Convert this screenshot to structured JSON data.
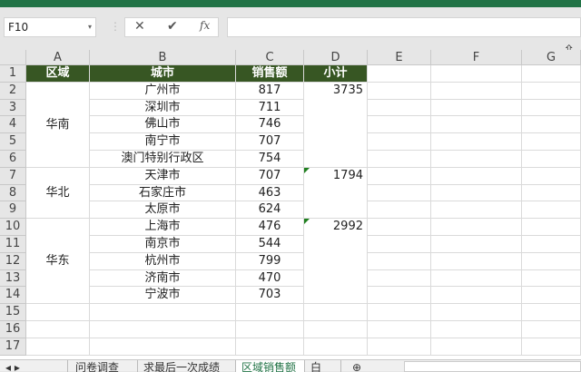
{
  "name_box": "F10",
  "formula_buttons": {
    "cancel": "✕",
    "enter": "✔",
    "fx": "fx"
  },
  "columns": [
    "A",
    "B",
    "C",
    "D",
    "E",
    "F",
    "G"
  ],
  "rows": [
    "1",
    "2",
    "3",
    "4",
    "5",
    "6",
    "7",
    "8",
    "9",
    "10",
    "11",
    "12",
    "13",
    "14",
    "15",
    "16",
    "17"
  ],
  "header": [
    "区域",
    "城市",
    "销售额",
    "小计"
  ],
  "regions": [
    {
      "name": "华南",
      "start": 2,
      "end": 6,
      "subtotal": "3735"
    },
    {
      "name": "华北",
      "start": 7,
      "end": 9,
      "subtotal": "1794"
    },
    {
      "name": "华东",
      "start": 10,
      "end": 14,
      "subtotal": "2992"
    }
  ],
  "cities": [
    "广州市",
    "深圳市",
    "佛山市",
    "南宁市",
    "澳门特别行政区",
    "天津市",
    "石家庄市",
    "太原市",
    "上海市",
    "南京市",
    "杭州市",
    "济南市",
    "宁波市"
  ],
  "sales": [
    "817",
    "711",
    "746",
    "707",
    "754",
    "707",
    "463",
    "624",
    "476",
    "544",
    "799",
    "470",
    "703"
  ],
  "sheet_tabs": [
    "问卷调查",
    "求最后一次成绩",
    "区域销售额",
    "白"
  ],
  "active_tab": "区域销售额",
  "colors": {
    "accent": "#217346",
    "header_fill": "#375623"
  }
}
